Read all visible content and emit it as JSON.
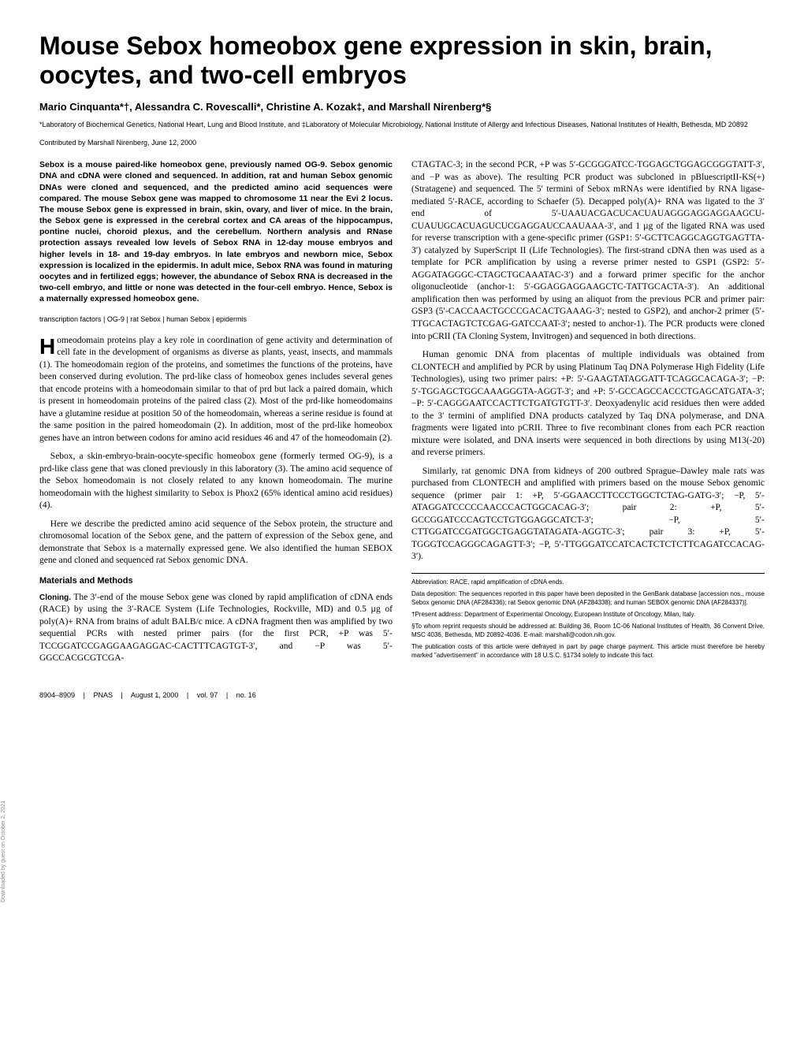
{
  "title": "Mouse Sebox homeobox gene expression in skin, brain, oocytes, and two-cell embryos",
  "authors": "Mario Cinquanta*†, Alessandra C. Rovescalli*, Christine A. Kozak‡, and Marshall Nirenberg*§",
  "affil": "*Laboratory of Biochemical Genetics, National Heart, Lung and Blood Institute, and ‡Laboratory of Molecular Microbiology, National Institute of Allergy and Infectious Diseases, National Institutes of Health, Bethesda, MD 20892",
  "contributed": "Contributed by Marshall Nirenberg, June 12, 2000",
  "abstract": "Sebox is a mouse paired-like homeobox gene, previously named OG-9. Sebox genomic DNA and cDNA were cloned and sequenced. In addition, rat and human Sebox genomic DNAs were cloned and sequenced, and the predicted amino acid sequences were compared. The mouse Sebox gene was mapped to chromosome 11 near the Evi 2 locus. The mouse Sebox gene is expressed in brain, skin, ovary, and liver of mice. In the brain, the Sebox gene is expressed in the cerebral cortex and CA areas of the hippocampus, pontine nuclei, choroid plexus, and the cerebellum. Northern analysis and RNase protection assays revealed low levels of Sebox RNA in 12-day mouse embryos and higher levels in 18- and 19-day embryos. In late embryos and newborn mice, Sebox expression is localized in the epidermis. In adult mice, Sebox RNA was found in maturing oocytes and in fertilized eggs; however, the abundance of Sebox RNA is decreased in the two-cell embryo, and little or none was detected in the four-cell embryo. Hence, Sebox is a maternally expressed homeobox gene.",
  "keywords": "transcription factors | OG-9 | rat Sebox | human Sebox | epidermis",
  "intro_dropcap": "H",
  "intro_text": "omeodomain proteins play a key role in coordination of gene activity and determination of cell fate in the development of organisms as diverse as plants, yeast, insects, and mammals (1). The homeodomain region of the proteins, and sometimes the functions of the proteins, have been conserved during evolution. The prd-like class of homeobox genes includes several genes that encode proteins with a homeodomain similar to that of prd but lack a paired domain, which is present in homeodomain proteins of the paired class (2). Most of the prd-like homeodomains have a glutamine residue at position 50 of the homeodomain, whereas a serine residue is found at the same position in the paired homeodomain (2). In addition, most of the prd-like homeobox genes have an intron between codons for amino acid residues 46 and 47 of the homeodomain (2).",
  "p_sebox": "Sebox, a skin-embryo-brain-oocyte-specific homeobox gene (formerly termed OG-9), is a prd-like class gene that was cloned previously in this laboratory (3). The amino acid sequence of the Sebox homeodomain is not closely related to any known homeodomain. The murine homeodomain with the highest similarity to Sebox is Phox2 (65% identical amino acid residues) (4).",
  "p_here": "Here we describe the predicted amino acid sequence of the Sebox protein, the structure and chromosomal location of the Sebox gene, and the pattern of expression of the Sebox gene, and demonstrate that Sebox is a maternally expressed gene. We also identified the human SEBOX gene and cloned and sequenced rat Sebox genomic DNA.",
  "section_methods": "Materials and Methods",
  "cloning_head": "Cloning.",
  "cloning_text": "The 3′-end of the mouse Sebox gene was cloned by rapid amplification of cDNA ends (RACE) by using the 3′-RACE System (Life Technologies, Rockville, MD) and 0.5 µg of poly(A)+ RNA from brains of adult BALB/c mice. A cDNA fragment then was amplified by two sequential PCRs with nested primer pairs (for the first PCR, +P was 5′-TCCGGATCCGAGGAAGAGGAC-CACTTTCAGTGT-3′, and −P was 5′-GGCCACGCGTCGA-",
  "col2_p1": "CTAGTAC-3; in the second PCR, +P was 5′-GCGGGATCC-TGGAGCTGGAGCGGGTATT-3′, and −P was as above). The resulting PCR product was subcloned in pBluescriptII-KS(+) (Stratagene) and sequenced. The 5′ termini of Sebox mRNAs were identified by RNA ligase-mediated 5′-RACE, according to Schaefer (5). Decapped poly(A)+ RNA was ligated to the 3′ end of 5′-UAAUACGACUCACUAUAGGGAGGAGGAAGCU-CUAUUGCACUAGUCUCGAGGAUCCAAUAAA-3′, and 1 µg of the ligated RNA was used for reverse transcription with a gene-specific primer (GSP1: 5′-GCTTCAGGCAGGTGAGTTA-3′) catalyzed by SuperScript II (Life Technologies). The first-strand cDNA then was used as a template for PCR amplification by using a reverse primer nested to GSP1 (GSP2: 5′-AGGATAGGGC-CTAGCTGCAAATAC-3′) and a forward primer specific for the anchor oligonucleotide (anchor-1: 5′-GGAGGAGGAAGCTC-TATTGCACTA-3′). An additional amplification then was performed by using an aliquot from the previous PCR and primer pair: GSP3 (5′-CACCAACTGCCCGACACTGAAAG-3′; nested to GSP2), and anchor-2 primer (5′-TTGCACTAGTCTCGAG-GATCCAAT-3′; nested to anchor-1). The PCR products were cloned into pCRII (TA Cloning System, Invitrogen) and sequenced in both directions.",
  "col2_p2": "Human genomic DNA from placentas of multiple individuals was obtained from CLONTECH and amplified by PCR by using Platinum Taq DNA Polymerase High Fidelity (Life Technologies), using two primer pairs: +P: 5′-GAAGTATAGGATT-TCAGGCACAGA-3′; −P: 5′-TGGAGCTGGCAAAGGGTA-AGGT-3′; and +P: 5′-GCCAGCCACCCTGAGCATGATA-3′; −P: 5′-CAGGGAATCCACTTCTGATGTGTT-3′. Deoxyadenylic acid residues then were added to the 3′ termini of amplified DNA products catalyzed by Taq DNA polymerase, and DNA fragments were ligated into pCRII. Three to five recombinant clones from each PCR reaction mixture were isolated, and DNA inserts were sequenced in both directions by using M13(-20) and reverse primers.",
  "col2_p3": "Similarly, rat genomic DNA from kidneys of 200 outbred Sprague–Dawley male rats was purchased from CLONTECH and amplified with primers based on the mouse Sebox genomic sequence (primer pair 1: +P, 5′-GGAACCTTCCCTGGCTCTAG-GATG-3′; −P, 5′-ATAGGATCCCCCAACCCACTGGCACAG-3′; pair 2: +P, 5′-GCCGGATCCCAGTCCTGTGGAGGCATCT-3′; −P, 5′-CTTGGATCCGATGGCTGAGGTATAGATA-AGGTC-3′; pair 3: +P, 5′-TGGGTCCAGGGCAGAGTT-3′; −P, 5′-TTGGGATCCATCACTCTCTCTTCAGATCCACAG-3′).",
  "fn_abbrev": "Abbreviation: RACE, rapid amplification of cDNA ends.",
  "fn_deposit": "Data deposition: The sequences reported in this paper have been deposited in the GenBank database [accession nos., mouse Sebox genomic DNA (AF284336); rat Sebox genomic DNA (AF284338); and human SEBOX genomic DNA (AF284337)].",
  "fn_dagger": "†Present address: Department of Experimental Oncology, European Institute of Oncology, Milan, Italy.",
  "fn_section": "§To whom reprint requests should be addressed at: Building 36, Room 1C-06 National Institutes of Health, 36 Convent Drive, MSC 4036, Bethesda, MD 20892-4036. E-mail: marshall@codon.nih.gov.",
  "fn_pub": "The publication costs of this article were defrayed in part by page charge payment. This article must therefore be hereby marked \"advertisement\" in accordance with 18 U.S.C. §1734 solely to indicate this fact.",
  "footer_pages": "8904–8909",
  "footer_pnas": "PNAS",
  "footer_date": "August 1, 2000",
  "footer_vol": "vol. 97",
  "footer_no": "no. 16",
  "sideways": "Downloaded by guest on October 2, 2021"
}
